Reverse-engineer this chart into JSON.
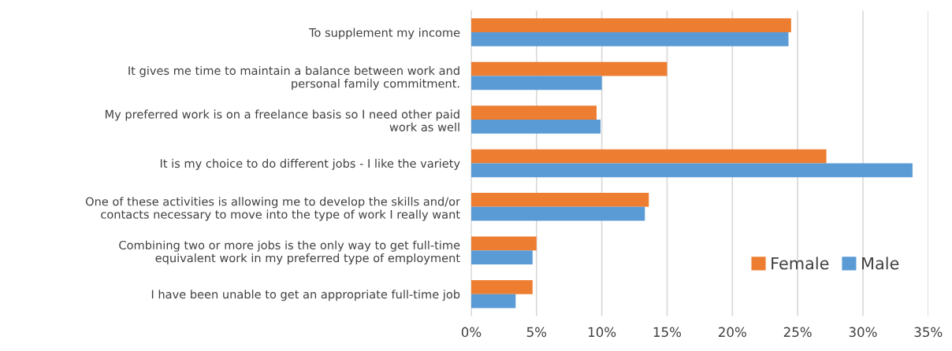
{
  "chart_data": {
    "type": "bar",
    "orientation": "horizontal",
    "categories": [
      "To supplement my income",
      "It gives me time to maintain a balance between work and\npersonal family commitment.",
      "My preferred work is on a freelance basis so I need other paid\nwork as well",
      "It is my choice to do different jobs - I like the variety",
      "One of these activities is allowing me to develop the skills and/or\ncontacts necessary to move into the type of work I really want",
      "Combining two or more jobs is the only way to get full-time\nequivalent work in my preferred type of employment",
      "I have been unable to get an appropriate full-time job"
    ],
    "series": [
      {
        "name": "Female",
        "color": "#ed7d31",
        "values": [
          24.5,
          15.0,
          9.6,
          27.2,
          13.6,
          5.0,
          4.7
        ]
      },
      {
        "name": "Male",
        "color": "#5b9bd5",
        "values": [
          24.3,
          10.0,
          9.9,
          33.8,
          13.3,
          4.7,
          3.4
        ]
      }
    ],
    "xlim": [
      0,
      35
    ],
    "xticks": [
      {
        "value": 0,
        "label": "0%"
      },
      {
        "value": 5,
        "label": "5%"
      },
      {
        "value": 10,
        "label": "10%"
      },
      {
        "value": 15,
        "label": "15%"
      },
      {
        "value": 20,
        "label": "20%"
      },
      {
        "value": 25,
        "label": "25%"
      },
      {
        "value": 30,
        "label": "30%"
      },
      {
        "value": 35,
        "label": "35%"
      }
    ],
    "grid": "x",
    "legend": "bottom right"
  }
}
